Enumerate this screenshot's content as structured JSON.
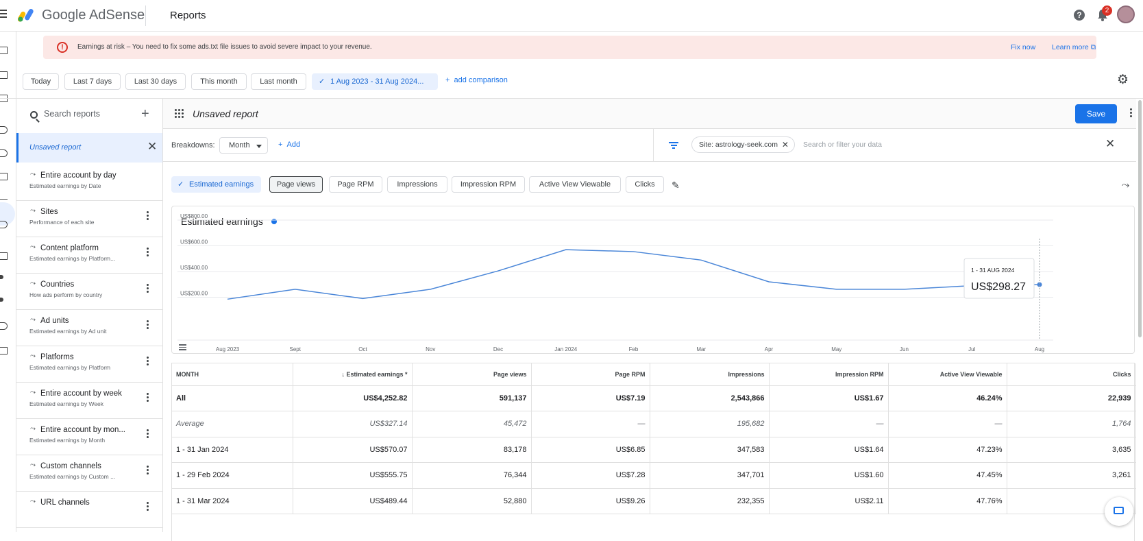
{
  "app": {
    "brand": "Google AdSense",
    "page_title": "Reports",
    "notification_count": "2"
  },
  "alert": {
    "text": "Earnings at risk – You need to fix some ads.txt file issues to avoid severe impact to your revenue.",
    "fix_label": "Fix now",
    "learn_label": "Learn more"
  },
  "date_filters": {
    "items": [
      "Today",
      "Last 7 days",
      "Last 30 days",
      "This month",
      "Last month"
    ],
    "active": "1 Aug 2023 - 31 Aug 2024...",
    "add_comparison": "add comparison"
  },
  "sidebar": {
    "search_placeholder": "Search reports",
    "unsaved_label": "Unsaved report",
    "reports": [
      {
        "title": "Entire account by day",
        "subtitle": "Estimated earnings by Date"
      },
      {
        "title": "Sites",
        "subtitle": "Performance of each site"
      },
      {
        "title": "Content platform",
        "subtitle": "Estimated earnings by Platform..."
      },
      {
        "title": "Countries",
        "subtitle": "How ads perform by country"
      },
      {
        "title": "Ad units",
        "subtitle": "Estimated earnings by Ad unit"
      },
      {
        "title": "Platforms",
        "subtitle": "Estimated earnings by Platform"
      },
      {
        "title": "Entire account by week",
        "subtitle": "Estimated earnings by Week"
      },
      {
        "title": "Entire account by mon...",
        "subtitle": "Estimated earnings by Month"
      },
      {
        "title": "Custom channels",
        "subtitle": "Estimated earnings by Custom ..."
      },
      {
        "title": "URL channels",
        "subtitle": ""
      }
    ]
  },
  "report": {
    "title": "Unsaved report",
    "save_label": "Save",
    "breakdowns_label": "Breakdowns:",
    "breakdown_value": "Month",
    "add_label": "Add",
    "site_filter": "Site: astrology-seek.com",
    "filter_placeholder": "Search or filter your data"
  },
  "metrics": [
    "Estimated earnings",
    "Page views",
    "Page RPM",
    "Impressions",
    "Impression RPM",
    "Active View Viewable",
    "Clicks"
  ],
  "chart_title": "Estimated earnings",
  "chart_data": {
    "type": "line",
    "title": "Estimated earnings",
    "categories": [
      "Aug 2023",
      "Sept",
      "Oct",
      "Nov",
      "Dec",
      "Jan 2024",
      "Feb",
      "Mar",
      "Apr",
      "May",
      "Jun",
      "Jul",
      "Aug"
    ],
    "series": [
      {
        "values": [
          185,
          262,
          190,
          262,
          405,
          570,
          555,
          489,
          320,
          262,
          262,
          290,
          298.27
        ],
        "color": "#4a86d8"
      }
    ],
    "y_ticks": [
      "US$200.00",
      "US$400.00",
      "US$600.00",
      "US$800.00"
    ],
    "ylim": [
      0,
      850
    ],
    "grid": true,
    "tooltip": {
      "label": "1 - 31 AUG 2024",
      "value": "US$298.27"
    }
  },
  "table": {
    "columns": [
      "MONTH",
      "Estimated earnings *",
      "Page views",
      "Page RPM",
      "Impressions",
      "Impression RPM",
      "Active View Viewable",
      "Clicks"
    ],
    "rows": [
      [
        "All",
        "US$4,252.82",
        "591,137",
        "US$7.19",
        "2,543,866",
        "US$1.67",
        "46.24%",
        "22,939"
      ],
      [
        "Average",
        "US$327.14",
        "45,472",
        "—",
        "195,682",
        "—",
        "—",
        "1,764"
      ],
      [
        "1 - 31 Jan 2024",
        "US$570.07",
        "83,178",
        "US$6.85",
        "347,583",
        "US$1.64",
        "47.23%",
        "3,635"
      ],
      [
        "1 - 29 Feb 2024",
        "US$555.75",
        "76,344",
        "US$7.28",
        "347,701",
        "US$1.60",
        "47.45%",
        "3,261"
      ],
      [
        "1 - 31 Mar 2024",
        "US$489.44",
        "52,880",
        "US$9.26",
        "232,355",
        "US$2.11",
        "47.76%",
        ""
      ]
    ]
  }
}
